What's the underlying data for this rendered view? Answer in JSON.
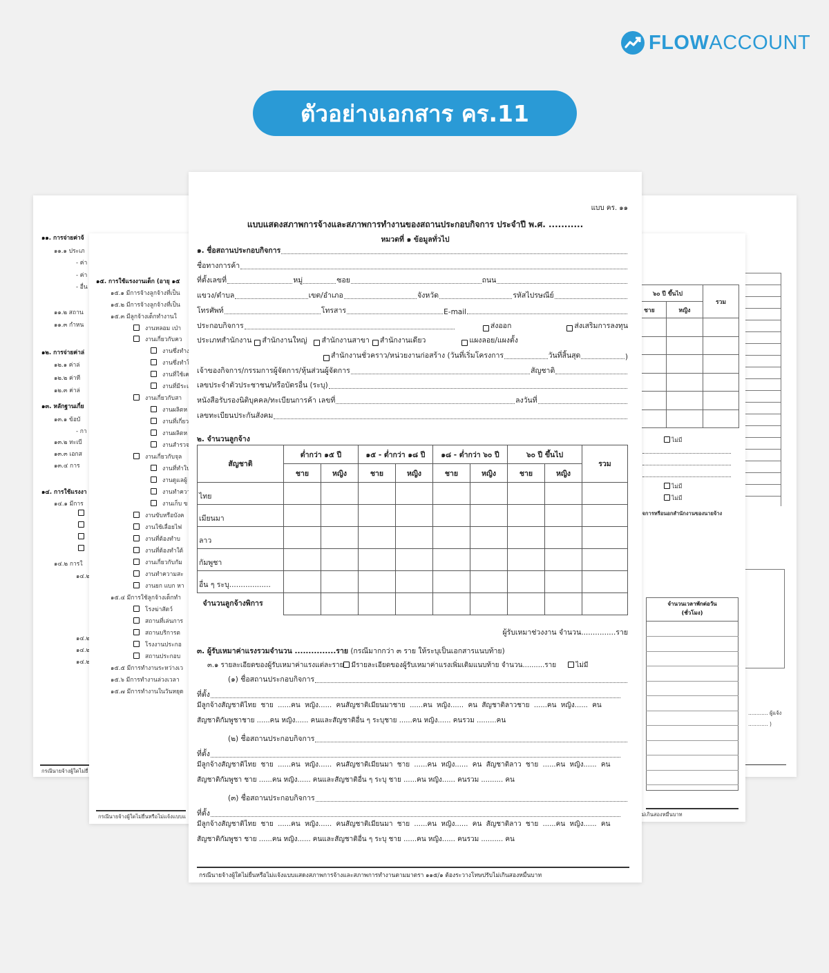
{
  "brand": {
    "logo_text_bold": "FLOW",
    "logo_text_light": "ACCOUNT",
    "accent": "#2a9ad6"
  },
  "title": "ตัวอย่างเอกสาร คร.11",
  "main": {
    "form_code": "แบบ คร. ๑๑",
    "heading": "แบบแสดงสภาพการจ้างและสภาพการทำงานของสถานประกอบกิจการ ประจำปี พ.ศ. ...........",
    "subheading": "หมวดที่ ๑ ข้อมูลทั่วไป",
    "lines": [
      [
        {
          "t": "๑. ชื่อสถานประกอบกิจการ",
          "b": 1
        },
        {
          "f": 1
        }
      ],
      [
        {
          "t": "ชื่อทางการค้า "
        },
        {
          "f": 1
        }
      ],
      [
        {
          "t": "ที่ตั้งเลขที่ "
        },
        {
          "f": 2
        },
        {
          "t": "หมู่ "
        },
        {
          "f": 1
        },
        {
          "t": "ซอย "
        },
        {
          "f": 4
        },
        {
          "t": "ถนน "
        },
        {
          "f": 4
        }
      ],
      [
        {
          "t": "แขวง/ตำบล"
        },
        {
          "f": 2
        },
        {
          "t": " เขต/อำเภอ"
        },
        {
          "f": 2
        },
        {
          "t": "จังหวัด"
        },
        {
          "f": 2
        },
        {
          "t": " รหัสไปรษณีย์"
        },
        {
          "f": 2
        }
      ],
      [
        {
          "t": "โทรศัพท์"
        },
        {
          "f": 3
        },
        {
          "t": " โทรสาร"
        },
        {
          "f": 3
        },
        {
          "t": " E-mail "
        },
        {
          "f": 5
        }
      ],
      [
        {
          "t": "ประกอบกิจการ"
        },
        {
          "f": 6
        },
        {
          "cb": 1,
          "t": "ส่งออก",
          "g": 40
        },
        {
          "cb": 1,
          "t": "ส่งเสริมการลงทุน",
          "g": 80
        }
      ],
      [
        {
          "t": "ประเภทสำนักงาน "
        },
        {
          "cb": 1,
          "t": "สำนักงานใหญ่",
          "g": 4
        },
        {
          "cb": 1,
          "t": "สำนักงานสาขา",
          "g": 10
        },
        {
          "cb": 1,
          "t": "สำนักงานเดียว",
          "g": 4
        },
        {
          "cb": 1,
          "t": "แผงลอย/แผงตั้ง",
          "g": 52
        }
      ],
      [
        {
          "cb": 1,
          "t": "สำนักงานชั่วคราว/หน่วยงานก่อสร้าง (วันที่เริ่มโครงการ",
          "g": 92
        },
        {
          "f": 2
        },
        {
          "t": "วันที่สิ้นสุด "
        },
        {
          "f": 2
        },
        {
          "t": " )"
        }
      ],
      [
        {
          "t": "เจ้าของกิจการ/กรรมการผู้จัดการ/หุ้นส่วนผู้จัดการ"
        },
        {
          "f": 5
        },
        {
          "t": " สัญชาติ"
        },
        {
          "f": 2
        }
      ],
      [
        {
          "t": "เลขประจำตัวประชาชน/หรือบัตรอื่น (ระบุ)"
        },
        {
          "f": 1
        }
      ],
      [
        {
          "t": "หนังสือรับรองนิติบุคคล/ทะเบียนการค้า เลขที่"
        },
        {
          "f": 4
        },
        {
          "t": "ลงวันที่ "
        },
        {
          "f": 2
        }
      ],
      [
        {
          "t": "เลขทะเบียนประกันสังคม"
        },
        {
          "f": 1
        }
      ]
    ],
    "section2": {
      "title": "๒. จำนวนลูกจ้าง",
      "nationality_header": "สัญชาติ",
      "age_groups": [
        "ต่ำกว่า ๑๕ ปี",
        "๑๕ - ต่ำกว่า ๑๘ ปี",
        "๑๘ - ต่ำกว่า ๖๐ ปี",
        "๖๐ ปี ขึ้นไป"
      ],
      "male": "ชาย",
      "female": "หญิง",
      "total": "รวม",
      "rows": [
        "ไทย",
        "เมียนมา",
        "ลาว",
        "กัมพูชา",
        "อื่น ๆ ระบุ.................."
      ],
      "disabled_row": "จำนวนลูกจ้างพิการ"
    },
    "subcontract_line": "ผู้รับเหมาช่วงงาน จำนวน...............ราย",
    "section3": {
      "title": "๓. ผู้รับเหมาค่าแรงรวมจำนวน ...............ราย",
      "title_note": " (กรณีมากกว่า ๓ ราย ให้ระบุเป็นเอกสารแนบท้าย)",
      "detail_prefix": "๓.๑ รายละเอียดของผู้รับเหมาค่าแรงแต่ละราย",
      "detail_option1": "มีรายละเอียดของผู้รับเหมาค่าแรงเพิ่มเติมแนบท้าย จำนวน..........ราย",
      "detail_option2": "ไม่มี",
      "entries": [
        {
          "name": "(๑)   ชื่อสถานประกอบกิจการ",
          "location": "ที่ตั้ง",
          "emp1": "มีลูกจ้างสัญชาติไทย  ชาย  ......คน  หญิง......  คนสัญชาติเมียนมาชาย  ......คน  หญิง......  คน  สัญชาติลาวชาย  ......คน  หญิง......  คน",
          "emp2": "สัญชาติกัมพูชาชาย ......คน หญิง...... คนและสัญชาติอื่น ๆ ระบุชาย ......คน หญิง...... คนรวม .........คน"
        },
        {
          "name": "(๒)   ชื่อสถานประกอบกิจการ",
          "location": "ที่ตั้ง",
          "emp1": "มีลูกจ้างสัญชาติไทย  ชาย  ......คน  หญิง......  คนสัญชาติเมียนมา  ชาย  ......คน  หญิง......  คน  สัญชาติลาว  ชาย  ......คน  หญิง......  คน",
          "emp2": "สัญชาติกัมพูชา ชาย ......คน หญิง...... คนและสัญชาติอื่น ๆ ระบุ ชาย ......คน หญิง...... คนรวม .......... คน"
        },
        {
          "name": "(๓)   ชื่อสถานประกอบกิจการ",
          "location": "ที่ตั้ง",
          "emp1": "มีลูกจ้างสัญชาติไทย  ชาย  ......คน  หญิง......  คนสัญชาติเมียนมา  ชาย  ......คน  หญิง......  คน  สัญชาติลาว  ชาย  ......คน  หญิง......  คน",
          "emp2": "สัญชาติกัมพูชา ชาย ......คน หญิง...... คนและสัญชาติอื่น ๆ ระบุ ชาย ......คน หญิง...... คนรวม .......... คน"
        }
      ]
    },
    "footer": "กรณีนายจ้างผู้ใดไม่ยื่นหรือไม่แจ้งแบบแสดงสภาพการจ้างและสภาพการทำงานตามมาตรา ๑๑๕/๑ ต้องระวางโทษปรับไม่เกินสองหมื่นบาท"
  },
  "back_left": {
    "items": [
      {
        "t": "๑๑. การจ่ายค่าจ้",
        "b": 1
      },
      {
        "t": "๑๑.๑ ประเภ"
      },
      {
        "t": "- ค่า"
      },
      {
        "t": "- ค่า"
      },
      {
        "t": "- อื่น"
      },
      {
        "t": "๑๑.๒ สถาน"
      },
      {
        "t": "๑๑.๓ กำหน"
      },
      {
        "t": "๑๒. การจ่ายค่าล่",
        "b": 1
      },
      {
        "t": "๑๒.๑  ค่าล่"
      },
      {
        "t": "๑๒.๒  ค่าที"
      },
      {
        "t": "๑๒.๓  ค่าล่"
      },
      {
        "t": "๑๓. หลักฐานเกี่ย",
        "b": 1
      },
      {
        "t": "๑๓.๑  ข้อบั"
      },
      {
        "t": "- กา"
      },
      {
        "t": "๑๓.๒  ทะเบี"
      },
      {
        "t": "๑๓.๓  เอกส"
      },
      {
        "t": "๑๓.๔  การ"
      },
      {
        "t": "๑๔. การใช้แรงงา",
        "b": 1
      },
      {
        "t": "๑๔.๑  มีการ"
      },
      {
        "t": "",
        "cb": 1
      },
      {
        "t": "",
        "cb": 1
      },
      {
        "t": "",
        "cb": 1
      },
      {
        "t": "",
        "cb": 1
      },
      {
        "t": "๑๔.๒  การใ"
      },
      {
        "t": "๑๔.๒"
      },
      {
        "t": "๑๔.๒"
      },
      {
        "t": "๑๔.๒"
      },
      {
        "t": "๑๔.๒"
      }
    ],
    "footer": "กรณีนายจ้างผู้ใดไม่ยื่"
  },
  "back_left2": {
    "items": [
      {
        "t": "๑๕.  การใช้แรงงานเด็ก (อายุ ๑๕",
        "b": 1
      },
      {
        "t": "๑๕.๑  มีการจ้างลูกจ้างที่เป็น"
      },
      {
        "t": "๑๕.๒  มีการจ้างลูกจ้างที่เป็น"
      },
      {
        "t": "๑๕.๓   มีลูกจ้างเด็กทำงานใ"
      },
      {
        "t": "งานหลอม เป่า",
        "cb": 1
      },
      {
        "t": "งานเกี่ยวกับคว",
        "cb": 1
      },
      {
        "t": "งานซึ่งทำง",
        "cb": 2
      },
      {
        "t": "งานซึ่งทำใ",
        "cb": 2
      },
      {
        "t": "งานที่ใช้เค",
        "cb": 2
      },
      {
        "t": "งานที่มีระเ",
        "cb": 2
      },
      {
        "t": "งานเกี่ยวกับสา",
        "cb": 1
      },
      {
        "t": "งานผลิตห",
        "cb": 2
      },
      {
        "t": "งานที่เกี่ยว",
        "cb": 2
      },
      {
        "t": "งานผลิตห",
        "cb": 2
      },
      {
        "t": "งานสำรวจ",
        "cb": 2
      },
      {
        "t": "งานเกี่ยวกับจุล",
        "cb": 1
      },
      {
        "t": "งานที่ทำใน",
        "cb": 2
      },
      {
        "t": "งานดูแลผู้",
        "cb": 2
      },
      {
        "t": "งานทำควา",
        "cb": 2
      },
      {
        "t": "งานเก็บ ข",
        "cb": 2
      },
      {
        "t": "งานขับหรือบังค",
        "cb": 1
      },
      {
        "t": "งานใช้เลื่อยไฟ",
        "cb": 1
      },
      {
        "t": "งานที่ต้องทำบ",
        "cb": 1
      },
      {
        "t": "งานที่ต้องทำใต้",
        "cb": 1
      },
      {
        "t": "งานเกี่ยวกับกัม",
        "cb": 1
      },
      {
        "t": "งานทำความสะ",
        "cb": 1
      },
      {
        "t": "งานยก แบก หา",
        "cb": 1
      },
      {
        "t": "๑๕.๔  มีการใช้ลูกจ้างเด็กทำ"
      },
      {
        "t": "โรงฆ่าสัตว์",
        "cb": 1
      },
      {
        "t": "สถานที่เล่นการ",
        "cb": 1
      },
      {
        "t": "สถานบริการต",
        "cb": 1
      },
      {
        "t": "โรงงานประกอ",
        "cb": 1
      },
      {
        "t": "สถานประกอบ",
        "cb": 1
      },
      {
        "t": "๑๕.๕ มีการทำงานระหว่างเว"
      },
      {
        "t": "๑๕.๖ มีการทำงานล่วงเวลา"
      },
      {
        "t": "๑๕.๗ มีการทำงานในวันหยุด"
      }
    ],
    "footer": "กรณีนายจ้างผู้ใดไม่ยื่นหรือไม่แจ้งแบบแ"
  },
  "back_right2": {
    "age_group": "๖๐ ปี ขึ้นไป",
    "male": "ชาย",
    "female": "หญิง",
    "total": "รวม",
    "none1": "ไม่มี",
    "none2": "ไม่มี",
    "none3": "ไม่มี",
    "outside_text": "กิจการหรือนอกสำนักงานของนายจ้าง",
    "break_header": "จำนวนเวลาพักต่อวัน (ชั่วโมง)",
    "footer": "ไม่เกินสองหมื่นบาท"
  },
  "back_right": {
    "reporter": "............ ผู้แจ้ง",
    "paren": "............ )"
  }
}
